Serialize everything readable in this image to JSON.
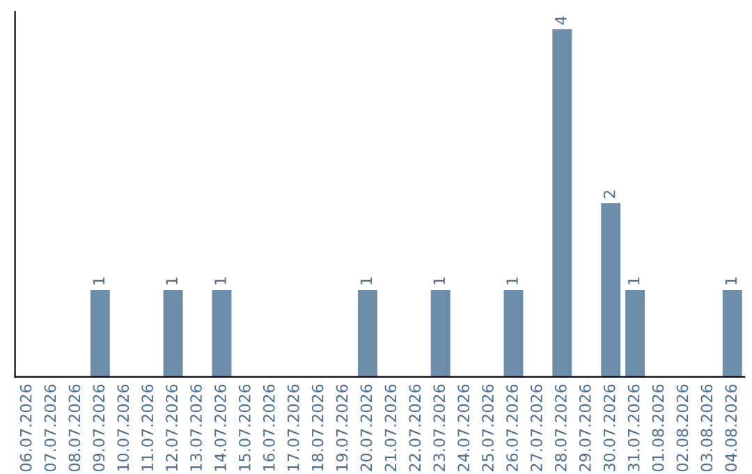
{
  "chart_data": {
    "type": "bar",
    "categories": [
      "06.07.2026",
      "07.07.2026",
      "08.07.2026",
      "09.07.2026",
      "10.07.2026",
      "11.07.2026",
      "12.07.2026",
      "13.07.2026",
      "14.07.2026",
      "15.07.2026",
      "16.07.2026",
      "17.07.2026",
      "18.07.2026",
      "19.07.2026",
      "20.07.2026",
      "21.07.2026",
      "22.07.2026",
      "23.07.2026",
      "24.07.2026",
      "25.07.2026",
      "26.07.2026",
      "27.07.2026",
      "28.07.2026",
      "29.07.2026",
      "30.07.2026",
      "31.07.2026",
      "01.08.2026",
      "02.08.2026",
      "03.08.2026",
      "04.08.2026"
    ],
    "values": [
      0,
      0,
      0,
      1,
      0,
      0,
      1,
      0,
      1,
      0,
      0,
      0,
      0,
      0,
      1,
      0,
      0,
      1,
      0,
      0,
      1,
      0,
      4,
      0,
      2,
      1,
      0,
      0,
      0,
      1
    ],
    "value_labels": [
      null,
      null,
      null,
      "1",
      null,
      null,
      "1",
      null,
      "1",
      null,
      null,
      null,
      null,
      null,
      "1",
      null,
      null,
      "1",
      null,
      null,
      "1",
      null,
      "4",
      null,
      "2",
      "1",
      null,
      null,
      null,
      "1"
    ],
    "color": "#6d8eab",
    "ylim": [
      0,
      4.2
    ],
    "tick_labels": "x",
    "grid": false,
    "legend": false
  }
}
